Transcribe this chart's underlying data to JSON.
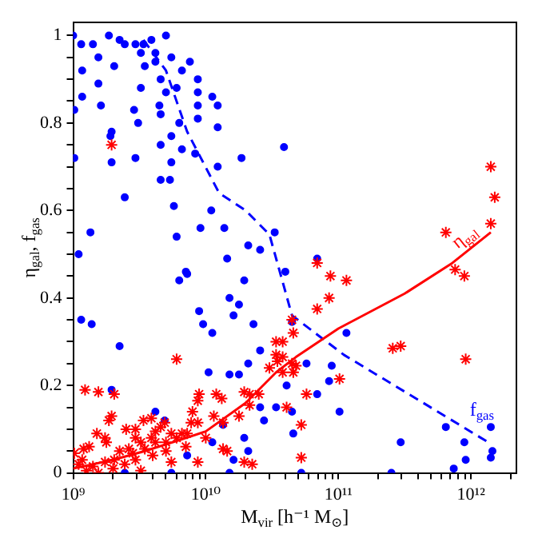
{
  "chart_data": {
    "type": "scatter",
    "xlabel": "M$_{vir}$ [h⁻¹ M$_{⊙}$]",
    "ylabel": "η$_{gal}$, f$_{gas}$",
    "log": "x",
    "grid": false,
    "legend": false,
    "xlim": [
      1000000000.0,
      2200000000000.0
    ],
    "ylim": [
      0,
      1.03
    ],
    "xticks": [
      {
        "value": 1000000000.0,
        "label": "10⁹"
      },
      {
        "value": 2000000000.0,
        "label": null
      },
      {
        "value": 3000000000.0,
        "label": null
      },
      {
        "value": 4000000000.0,
        "label": null
      },
      {
        "value": 5000000000.0,
        "label": null
      },
      {
        "value": 6000000000.0,
        "label": null
      },
      {
        "value": 7000000000.0,
        "label": null
      },
      {
        "value": 8000000000.0,
        "label": null
      },
      {
        "value": 9000000000.0,
        "label": null
      },
      {
        "value": 10000000000.0,
        "label": "10¹⁰"
      },
      {
        "value": 20000000000.0,
        "label": null
      },
      {
        "value": 30000000000.0,
        "label": null
      },
      {
        "value": 40000000000.0,
        "label": null
      },
      {
        "value": 50000000000.0,
        "label": null
      },
      {
        "value": 60000000000.0,
        "label": null
      },
      {
        "value": 70000000000.0,
        "label": null
      },
      {
        "value": 80000000000.0,
        "label": null
      },
      {
        "value": 90000000000.0,
        "label": null
      },
      {
        "value": 100000000000.0,
        "label": "10¹¹"
      },
      {
        "value": 200000000000.0,
        "label": null
      },
      {
        "value": 300000000000.0,
        "label": null
      },
      {
        "value": 400000000000.0,
        "label": null
      },
      {
        "value": 500000000000.0,
        "label": null
      },
      {
        "value": 600000000000.0,
        "label": null
      },
      {
        "value": 700000000000.0,
        "label": null
      },
      {
        "value": 800000000000.0,
        "label": null
      },
      {
        "value": 900000000000.0,
        "label": null
      },
      {
        "value": 1000000000000.0,
        "label": "10¹²"
      },
      {
        "value": 2000000000000.0,
        "label": null
      }
    ],
    "yticks": [
      0,
      {
        "value": 0.05,
        "label": null
      },
      {
        "value": 0.1,
        "label": null
      },
      {
        "value": 0.15,
        "label": null
      },
      0.2,
      {
        "value": 0.25,
        "label": null
      },
      {
        "value": 0.3,
        "label": null
      },
      {
        "value": 0.35,
        "label": null
      },
      0.4,
      {
        "value": 0.45,
        "label": null
      },
      {
        "value": 0.5,
        "label": null
      },
      {
        "value": 0.55,
        "label": null
      },
      0.6,
      {
        "value": 0.65,
        "label": null
      },
      {
        "value": 0.7,
        "label": null
      },
      {
        "value": 0.75,
        "label": null
      },
      0.8,
      {
        "value": 0.85,
        "label": null
      },
      {
        "value": 0.9,
        "label": null
      },
      {
        "value": 0.95,
        "label": null
      },
      1
    ],
    "series": [
      {
        "marker": "cross",
        "color": "#ff0000",
        "x": [
          1950000000.0,
          1410000000000.0,
          1510000000000.0,
          1410000000000.0,
          646000000000.0,
          69200000000.0,
          87100000000.0,
          115000000000.0,
          85100000000.0,
          69200000000.0,
          44700000000.0,
          45700000000.0,
          38000000000.0,
          38000000000.0,
          44700000000.0,
          47900000000.0,
          45700000000.0,
          38000000000.0,
          57500000000.0,
          102000000000.0,
          40700000000.0,
          52500000000.0,
          52500000000.0,
          759000000000.0,
          891000000000.0,
          912000000000.0,
          257000000000.0,
          295000000000.0,
          1230000000.0,
          1550000000.0,
          2040000000.0,
          1950000000.0,
          1860000000.0,
          1510000000.0,
          1740000000.0,
          1200000000.0,
          2510000000.0,
          3390000000.0,
          2950000000.0,
          6030000000.0,
          4900000000.0,
          5500000000.0,
          4170000000.0,
          6610000000.0,
          8710000000.0,
          8910000000.0,
          12000000000.0,
          13200000000.0,
          17800000000.0,
          19500000000.0,
          21400000000.0,
          25100000000.0,
          21400000000.0,
          13500000000.0,
          14500000000.0,
          8710000000.0,
          19500000000.0,
          22400000000.0,
          30200000000.0,
          33900000000.0,
          34700000000.0,
          33900000000.0,
          11500000000.0,
          13500000000.0,
          8710000000.0,
          1100000000.0,
          1170000000.0,
          1410000000.0,
          1740000000.0,
          2040000000.0,
          2240000000.0,
          2630000000.0,
          3240000000.0,
          3890000000.0,
          4170000000.0,
          4570000000.0,
          3470000000.0,
          2950000000.0,
          2450000000.0,
          5010000000.0,
          6030000000.0,
          7240000000.0,
          7760000000.0,
          1550000000.0,
          3240000000.0,
          5500000000.0,
          3890000000.0,
          2950000000.0,
          1780000000.0,
          1320000000.0,
          1020000000.0,
          1260000000.0,
          2000000000.0,
          3980000000.0,
          2820000000.0,
          5010000000.0,
          7080000000.0,
          10000000000.0,
          7940000000.0
        ],
        "values": [
          0.75,
          0.7,
          0.63,
          0.57,
          0.55,
          0.48,
          0.45,
          0.44,
          0.4,
          0.375,
          0.35,
          0.32,
          0.3,
          0.265,
          0.25,
          0.245,
          0.23,
          0.23,
          0.18,
          0.215,
          0.15,
          0.11,
          0.035,
          0.465,
          0.45,
          0.26,
          0.285,
          0.29,
          0.19,
          0.185,
          0.18,
          0.13,
          0.12,
          0.09,
          0.08,
          0.055,
          0.1,
          0.12,
          0.08,
          0.26,
          0.115,
          0.09,
          0.07,
          0.09,
          0.165,
          0.18,
          0.18,
          0.17,
          0.13,
          0.185,
          0.18,
          0.18,
          0.155,
          0.055,
          0.05,
          0.025,
          0.025,
          0.02,
          0.24,
          0.27,
          0.255,
          0.3,
          0.13,
          0.115,
          0.115,
          0.02,
          0.03,
          0.015,
          0.025,
          0.03,
          0.05,
          0.055,
          0.07,
          0.08,
          0.095,
          0.105,
          0.055,
          0.03,
          0.02,
          0.07,
          0.08,
          0.09,
          0.115,
          0,
          0.005,
          0.025,
          0.125,
          0.1,
          0.07,
          0.06,
          0.045,
          0.005,
          0.01,
          0.04,
          0.045,
          0.05,
          0.06,
          0.08,
          0.14
        ]
      },
      {
        "marker": "circle",
        "color": "#0000ff",
        "x": [
          1000000000.0,
          1150000000.0,
          1410000000.0,
          1860000000.0,
          2240000000.0,
          2950000000.0,
          3890000000.0,
          5010000000.0,
          4170000000.0,
          3240000000.0,
          1550000000.0,
          1170000000.0,
          2040000000.0,
          5500000000.0,
          7590000000.0,
          6610000000.0,
          8710000000.0,
          8710000000.0,
          11200000000.0,
          12300000000.0,
          12300000000.0,
          8710000000.0,
          8710000000.0,
          1550000000.0,
          1170000000.0,
          1620000000.0,
          1020000000.0,
          3240000000.0,
          2880000000.0,
          3090000000.0,
          1910000000.0,
          1950000000.0,
          1950000000.0,
          1020000000.0,
          2950000000.0,
          2450000000.0,
          4570000000.0,
          4570000000.0,
          5370000000.0,
          5500000000.0,
          5750000000.0,
          6030000000.0,
          6610000000.0,
          8320000000.0,
          11000000000.0,
          12300000000.0,
          9120000000.0,
          13800000000.0,
          18600000000.0,
          20900000000.0,
          25700000000.0,
          33100000000.0,
          14500000000.0,
          1350000000.0,
          1100000000.0,
          3470000000.0,
          4170000000.0,
          3390000000.0,
          2450000000.0,
          4570000000.0,
          5010000000.0,
          6030000000.0,
          4470000000.0,
          4570000000.0,
          5500000000.0,
          6310000000.0,
          1150000000.0,
          1380000000.0,
          2240000000.0,
          6310000000.0,
          7080000000.0,
          7240000000.0,
          8910000000.0,
          9550000000.0,
          11200000000.0,
          15100000000.0,
          16200000000.0,
          17800000000.0,
          19500000000.0,
          22900000000.0,
          20900000000.0,
          25700000000.0,
          25700000000.0,
          27500000000.0,
          33900000000.0,
          10500000000.0,
          15100000000.0,
          17800000000.0,
          1950000000.0,
          4170000000.0,
          4900000000.0,
          13500000000.0,
          19500000000.0,
          20900000000.0,
          16200000000.0,
          11200000000.0,
          15100000000.0,
          7240000000.0,
          5500000000.0,
          2450000000.0,
          39800000000.0,
          44700000000.0,
          40700000000.0,
          57500000000.0,
          69200000000.0,
          85100000000.0,
          89100000000.0,
          102000000000.0,
          115000000000.0,
          44700000000.0,
          45700000000.0,
          52500000000.0,
          251000000000.0,
          295000000000.0,
          646000000000.0,
          741000000000.0,
          891000000000.0,
          912000000000.0,
          1410000000000.0,
          1450000000000.0,
          1410000000000.0,
          38900000000.0,
          69200000000.0
        ],
        "values": [
          1,
          0.98,
          0.98,
          1,
          0.99,
          0.98,
          0.99,
          1,
          0.96,
          0.96,
          0.95,
          0.92,
          0.93,
          0.95,
          0.94,
          0.92,
          0.9,
          0.87,
          0.86,
          0.84,
          0.79,
          0.84,
          0.81,
          0.89,
          0.86,
          0.84,
          0.83,
          0.88,
          0.83,
          0.8,
          0.77,
          0.78,
          0.71,
          0.72,
          0.72,
          0.63,
          0.75,
          0.67,
          0.67,
          0.71,
          0.61,
          0.54,
          0.74,
          0.73,
          0.6,
          0.7,
          0.56,
          0.56,
          0.72,
          0.52,
          0.51,
          0.55,
          0.49,
          0.55,
          0.5,
          0.93,
          0.94,
          0.98,
          0.98,
          0.9,
          0.87,
          0.88,
          0.84,
          0.82,
          0.77,
          0.8,
          0.35,
          0.34,
          0.29,
          0.44,
          0.46,
          0.455,
          0.37,
          0.34,
          0.32,
          0.4,
          0.36,
          0.385,
          0.44,
          0.34,
          0.25,
          0.28,
          0.15,
          0.12,
          0.15,
          0.23,
          0.225,
          0.225,
          0.19,
          0.14,
          0.12,
          0.11,
          0.08,
          0.05,
          0.03,
          0.07,
          0,
          0.04,
          0,
          0,
          0.46,
          0.345,
          0.2,
          0.25,
          0.18,
          0.21,
          0.245,
          0.14,
          0.32,
          0.14,
          0.09,
          0,
          0,
          0.07,
          0.105,
          0.01,
          0.07,
          0.03,
          0.105,
          0.05,
          0.035,
          0.745,
          0.49
        ]
      },
      {
        "type": "line",
        "name": "η$_{gal}$",
        "color": "#ff0000",
        "line_style": "solid",
        "x": [
          1000000000.0,
          2000000000.0,
          3470000000.0,
          6310000000.0,
          10000000000.0,
          20000000000.0,
          33900000000.0,
          47900000000.0,
          100000000000.0,
          316000000000.0,
          724000000000.0,
          1410000000000.0
        ],
        "values": [
          0.01,
          0.03,
          0.05,
          0.075,
          0.095,
          0.16,
          0.23,
          0.265,
          0.33,
          0.41,
          0.48,
          0.55
        ]
      },
      {
        "type": "line",
        "name": "f$_{gas}$",
        "color": "#0000ff",
        "line_style": "dashed",
        "x": [
          3390000000.0,
          5010000000.0,
          7240000000.0,
          12600000000.0,
          20000000000.0,
          30200000000.0,
          44700000000.0,
          110000000000.0,
          1350000000000.0
        ],
        "values": [
          0.99,
          0.92,
          0.78,
          0.64,
          0.6,
          0.545,
          0.36,
          0.27,
          0.07
        ]
      }
    ]
  }
}
